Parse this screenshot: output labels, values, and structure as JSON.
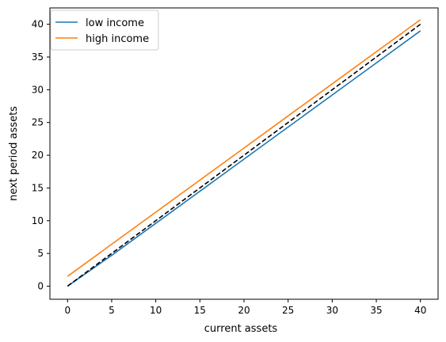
{
  "chart_data": {
    "type": "line",
    "title": "",
    "xlabel": "current assets",
    "ylabel": "next period assets",
    "xlim": [
      -2,
      42
    ],
    "ylim": [
      -2,
      42.5
    ],
    "x_ticks": [
      0,
      5,
      10,
      15,
      20,
      25,
      30,
      35,
      40
    ],
    "y_ticks": [
      0,
      5,
      10,
      15,
      20,
      25,
      30,
      35,
      40
    ],
    "grid": false,
    "legend_position": "top-left",
    "series": [
      {
        "name": "low income",
        "color": "#1f77b4",
        "style": "solid",
        "x": [
          0,
          5,
          10,
          15,
          20,
          25,
          30,
          35,
          40
        ],
        "y": [
          0,
          4.7,
          9.6,
          14.5,
          19.4,
          24.3,
          29.2,
          34.1,
          39.0
        ]
      },
      {
        "name": "high income",
        "color": "#ff7f0e",
        "style": "solid",
        "x": [
          0,
          5,
          10,
          15,
          20,
          25,
          30,
          35,
          40
        ],
        "y": [
          1.5,
          6.4,
          11.3,
          16.2,
          21.1,
          26.0,
          30.9,
          35.8,
          40.7
        ]
      },
      {
        "color": "#000000",
        "style": "dashed",
        "x": [
          0,
          40
        ],
        "y": [
          0,
          40
        ]
      }
    ]
  }
}
